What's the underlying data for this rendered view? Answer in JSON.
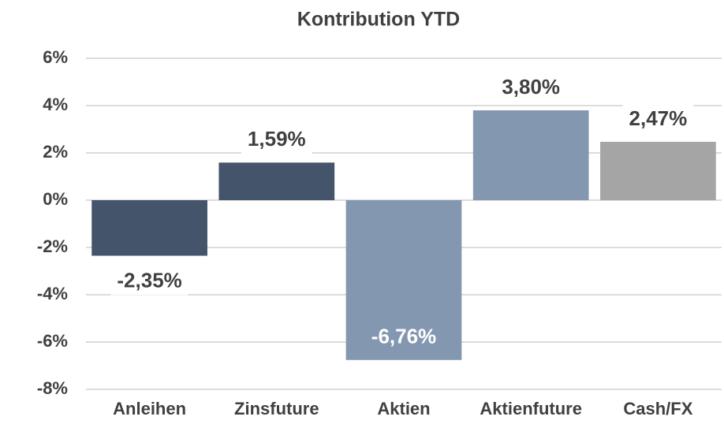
{
  "chart_data": {
    "type": "bar",
    "title": "Kontribution YTD",
    "categories": [
      "Anleihen",
      "Zinsfuture",
      "Aktien",
      "Aktienfuture",
      "Cash/FX"
    ],
    "values": [
      -2.35,
      1.59,
      -6.76,
      3.8,
      2.47
    ],
    "value_labels": [
      "-2,35%",
      "1,59%",
      "-6,76%",
      "3,80%",
      "2,47%"
    ],
    "colors": [
      "#44546a",
      "#44546a",
      "#8497b0",
      "#8497b0",
      "#a5a5a5"
    ],
    "ylim": [
      -8,
      6
    ],
    "yticks": [
      {
        "value": -8,
        "label": "-8%"
      },
      {
        "value": -6,
        "label": "-6%"
      },
      {
        "value": -4,
        "label": "-4%"
      },
      {
        "value": -2,
        "label": "-2%"
      },
      {
        "value": 0,
        "label": "0%"
      },
      {
        "value": 2,
        "label": "2%"
      },
      {
        "value": 4,
        "label": "4%"
      },
      {
        "value": 6,
        "label": "6%"
      }
    ],
    "grid": true
  }
}
